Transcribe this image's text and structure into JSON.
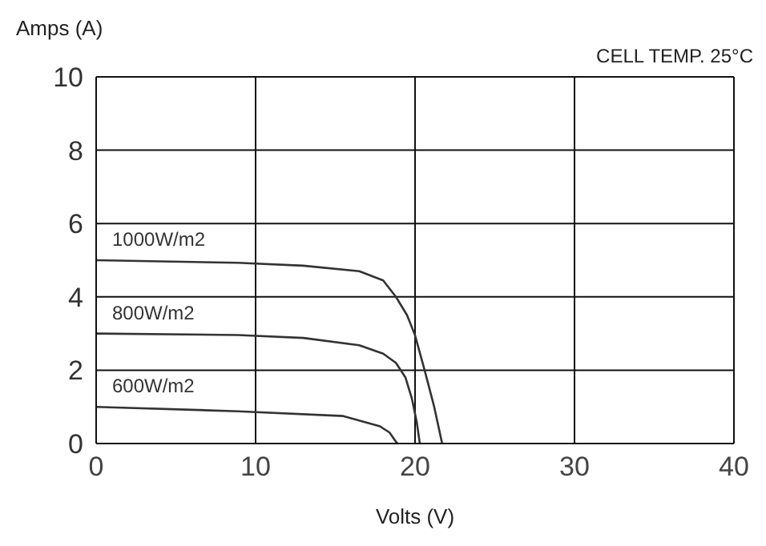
{
  "chart_data": {
    "type": "line",
    "xlabel": "Volts (V)",
    "ylabel": "Amps (A)",
    "annotations": [
      "CELL TEMP. 25°C"
    ],
    "xlim": [
      0,
      40
    ],
    "xticks": [
      0,
      10,
      20,
      30,
      40
    ],
    "ylim": [
      0,
      10
    ],
    "yticks": [
      0,
      2,
      4,
      6,
      8,
      10
    ],
    "grid": true,
    "legend": false,
    "marker": "none",
    "line_style": "solid",
    "series": [
      {
        "name": "1000W/m2",
        "color": "#333333",
        "x": [
          0,
          8.9,
          13,
          16.5,
          18,
          18.8,
          19.5,
          20,
          20.6,
          21.2,
          21.7
        ],
        "values": [
          5.0,
          4.93,
          4.85,
          4.7,
          4.45,
          4.0,
          3.5,
          2.95,
          2.0,
          1.0,
          0
        ]
      },
      {
        "name": "800W/m2",
        "color": "#333333",
        "x": [
          0,
          8.9,
          13,
          16.5,
          18,
          18.8,
          19.4,
          19.8,
          20.1,
          20.3
        ],
        "values": [
          3.0,
          2.96,
          2.88,
          2.68,
          2.45,
          2.2,
          1.8,
          1.23,
          0.6,
          0
        ]
      },
      {
        "name": "600W/m2",
        "color": "#333333",
        "x": [
          0,
          8.9,
          15.5,
          17.8,
          18.4,
          18.8,
          18.9
        ],
        "values": [
          1.0,
          0.88,
          0.75,
          0.47,
          0.3,
          0.05,
          0
        ]
      }
    ]
  }
}
